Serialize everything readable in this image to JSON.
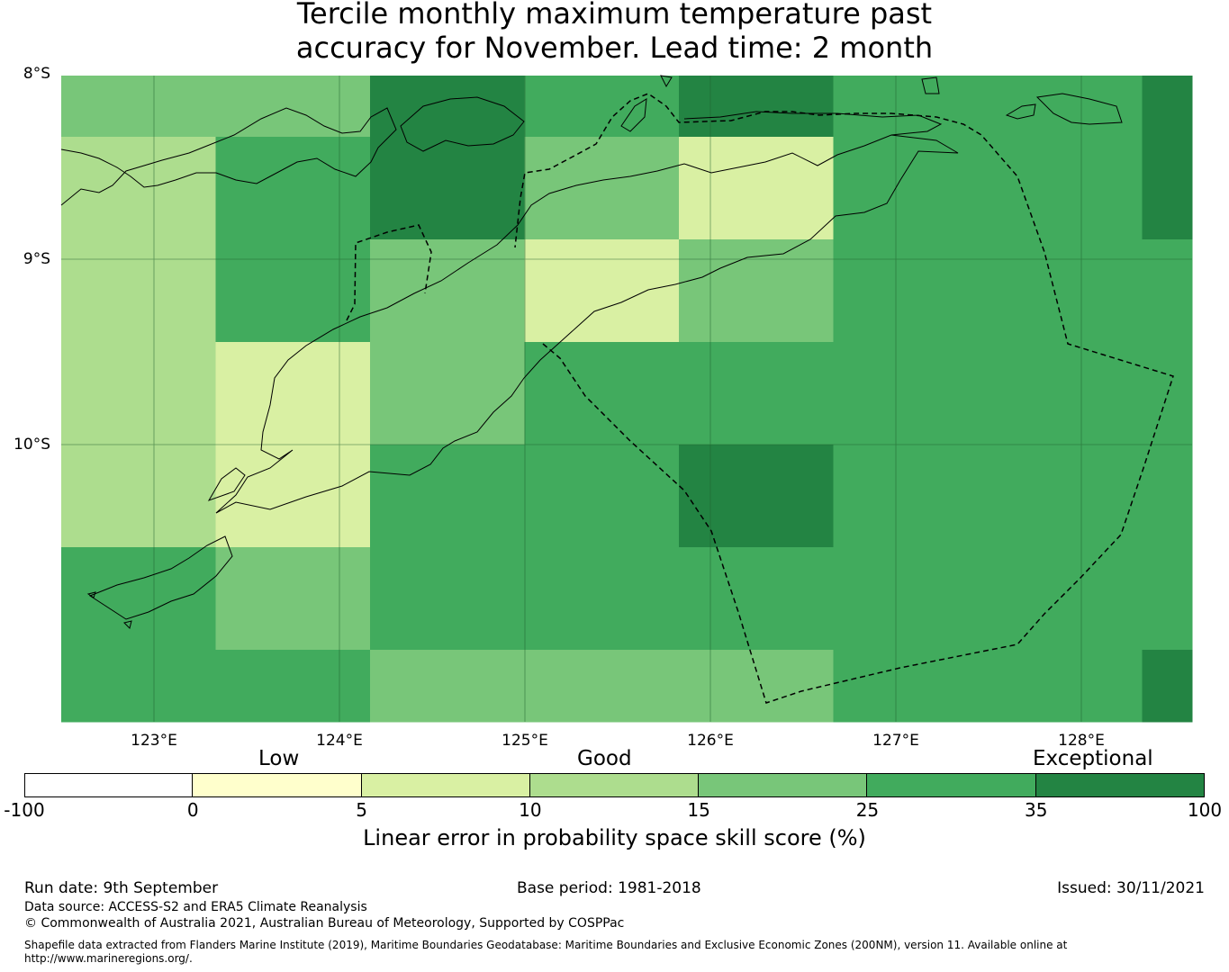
{
  "title_line1": "Tercile monthly maximum temperature past",
  "title_line2": "accuracy for November. Lead time: 2 month",
  "lat_labels": [
    "8°S",
    "9°S",
    "10°S"
  ],
  "lon_labels": [
    "123°E",
    "124°E",
    "125°E",
    "126°E",
    "127°E",
    "128°E"
  ],
  "category_labels": [
    "Low",
    "Good",
    "Exceptional"
  ],
  "colorbar": {
    "ticks": [
      "-100",
      "0",
      "5",
      "10",
      "15",
      "25",
      "35",
      "100"
    ],
    "colors": [
      "#ffffff",
      "#ffffcc",
      "#d9f0a3",
      "#addd8e",
      "#78c679",
      "#41ab5d",
      "#238443"
    ],
    "label": "Linear error in probability space skill score (%)"
  },
  "grid_levels": [
    [
      4,
      4,
      6,
      5,
      6,
      5,
      5,
      6
    ],
    [
      3,
      5,
      6,
      4,
      2,
      5,
      5,
      6
    ],
    [
      3,
      5,
      4,
      2,
      4,
      5,
      5,
      5
    ],
    [
      3,
      2,
      4,
      5,
      5,
      5,
      5,
      5
    ],
    [
      3,
      2,
      5,
      5,
      6,
      5,
      5,
      5
    ],
    [
      5,
      4,
      5,
      5,
      5,
      5,
      5,
      5
    ],
    [
      5,
      5,
      4,
      4,
      4,
      5,
      5,
      6
    ]
  ],
  "footer": {
    "run_date": "Run date: 9th September",
    "base_period": "Base period: 1981-2018",
    "issued": "Issued: 30/11/2021",
    "data_source": "Data source: ACCESS-S2 and ERA5 Climate Reanalysis",
    "copyright": "© Commonwealth of Australia 2021, Australian Bureau of Meteorology, Supported by COSPPac",
    "shapefile_line1": "Shapefile data extracted from Flanders Marine Institute (2019), Maritime Boundaries Geodatabase: Maritime Boundaries and Exclusive Economic Zones (200NM), version 11. Available online at",
    "shapefile_line2": "http://www.marineregions.org/."
  }
}
